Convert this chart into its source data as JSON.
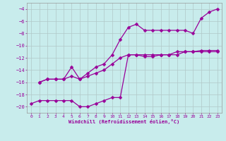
{
  "xlabel": "Windchill (Refroidissement éolien,°C)",
  "background_color": "#c8ecec",
  "grid_color": "#b0c8c8",
  "line_color": "#990099",
  "xlim": [
    -0.5,
    23.5
  ],
  "ylim": [
    -21,
    -3
  ],
  "yticks": [
    -20,
    -18,
    -16,
    -14,
    -12,
    -10,
    -8,
    -6,
    -4
  ],
  "xticks": [
    0,
    1,
    2,
    3,
    4,
    5,
    6,
    7,
    8,
    9,
    10,
    11,
    12,
    13,
    14,
    15,
    16,
    17,
    18,
    19,
    20,
    21,
    22,
    23
  ],
  "line1_x": [
    0,
    1,
    2,
    3,
    4,
    5,
    6,
    7,
    8,
    9,
    10,
    11,
    12,
    13,
    14,
    15,
    16,
    17,
    18,
    19,
    20,
    21,
    22,
    23
  ],
  "line1_y": [
    -19.5,
    -19.0,
    -19.0,
    -19.0,
    -19.0,
    -19.0,
    -20.0,
    -20.0,
    -19.5,
    -19.0,
    -18.5,
    -18.5,
    -11.5,
    -11.5,
    -11.8,
    -11.8,
    -11.5,
    -11.5,
    -11.5,
    -11.0,
    -11.0,
    -11.0,
    -11.0,
    -11.0
  ],
  "line2_x": [
    1,
    2,
    3,
    4,
    5,
    6,
    7,
    8,
    9,
    10,
    11,
    12,
    13,
    14,
    15,
    16,
    17,
    18,
    19,
    20,
    21,
    22,
    23
  ],
  "line2_y": [
    -16.0,
    -15.5,
    -15.5,
    -15.5,
    -15.0,
    -15.5,
    -15.0,
    -14.5,
    -14.0,
    -13.0,
    -12.0,
    -11.5,
    -11.5,
    -11.5,
    -11.5,
    -11.5,
    -11.5,
    -11.0,
    -11.0,
    -11.0,
    -10.8,
    -10.8,
    -10.8
  ],
  "line3_x": [
    1,
    2,
    3,
    4,
    5,
    6,
    7,
    8,
    9,
    10,
    11,
    12,
    13,
    14,
    15,
    16,
    17,
    18,
    19,
    20,
    21,
    22,
    23
  ],
  "line3_y": [
    -16.0,
    -15.5,
    -15.5,
    -15.5,
    -13.5,
    -15.5,
    -14.5,
    -13.5,
    -13.0,
    -11.5,
    -9.0,
    -7.0,
    -6.5,
    -7.5,
    -7.5,
    -7.5,
    -7.5,
    -7.5,
    -7.5,
    -8.0,
    -5.5,
    -4.5,
    -4.0
  ]
}
